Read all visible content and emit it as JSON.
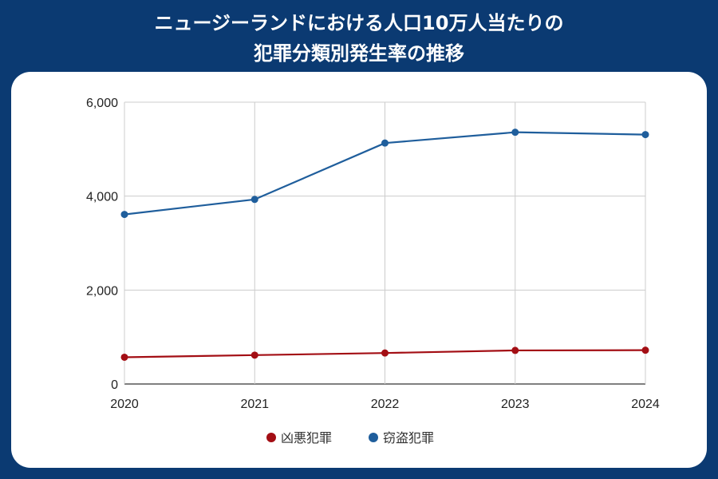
{
  "header": {
    "title_line1": "ニュージーランドにおける人口10万人当たりの",
    "title_line2": "犯罪分類別発生率の推移"
  },
  "chart_data": {
    "type": "line",
    "title": "ニュージーランドにおける人口10万人当たりの犯罪分類別発生率の推移",
    "xlabel": "",
    "ylabel": "",
    "categories": [
      "2020",
      "2021",
      "2022",
      "2023",
      "2024"
    ],
    "ylim": [
      0,
      6000
    ],
    "yticks": [
      0,
      2000,
      4000,
      6000
    ],
    "ytick_labels": [
      "0",
      "2,000",
      "4,000",
      "6,000"
    ],
    "grid": true,
    "legend_position": "bottom",
    "series": [
      {
        "name": "凶悪犯罪",
        "color": "#a30e14",
        "values": [
          570,
          615,
          660,
          715,
          720
        ]
      },
      {
        "name": "窃盗犯罪",
        "color": "#1f5e9c",
        "values": [
          3610,
          3930,
          5130,
          5360,
          5310
        ]
      }
    ]
  }
}
